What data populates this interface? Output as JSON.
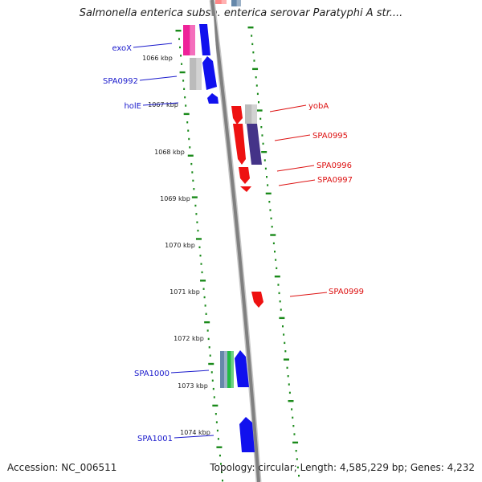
{
  "title": "Salmonella enterica subsp. enterica serovar Paratyphi A str....",
  "footer": {
    "accession": "Accession: NC_006511",
    "topology": "Topology: circular; Length: 4,585,229 bp; Genes: 4,232"
  },
  "colors": {
    "backbone": "#888888",
    "tick_green": "#1a8a1a",
    "left_label": "#1a1acc",
    "right_label": "#dd1111",
    "red_gene": "#ee1111",
    "blue_gene": "#1111ee",
    "magenta_gene": "#ee2299",
    "grey_gene": "#bbbbbb",
    "navy_gene": "#443388",
    "green_gene": "#22bb44",
    "steel_gene": "#6688aa"
  },
  "kbp_labels": [
    "1066 kbp",
    "1067 kbp",
    "1068 kbp",
    "1069 kbp",
    "1070 kbp",
    "1071 kbp",
    "1072 kbp",
    "1073 kbp",
    "1074 kbp"
  ],
  "left_genes": [
    "exoX",
    "SPA0992",
    "holE",
    "SPA1000",
    "SPA1001"
  ],
  "right_genes": [
    "yobA",
    "SPA0995",
    "SPA0996",
    "SPA0997",
    "SPA0999"
  ]
}
